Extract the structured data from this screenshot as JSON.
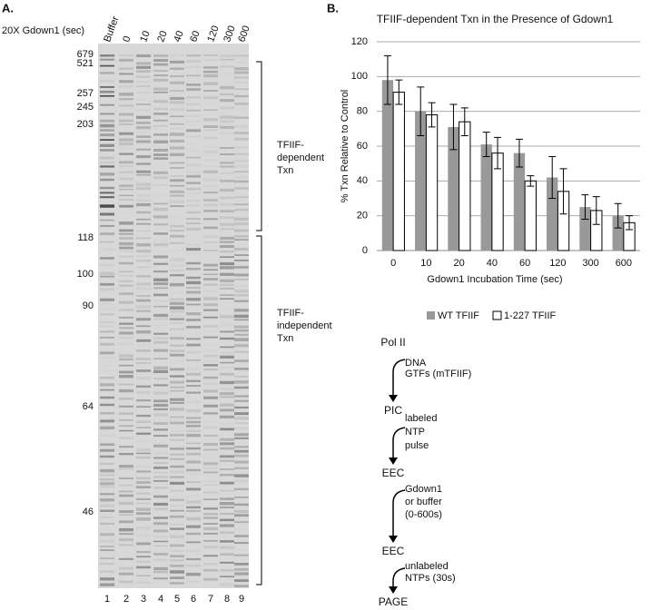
{
  "panel_a": {
    "label": "A.",
    "condition": "20X Gdown1 (sec)",
    "lanes": [
      "Buffer",
      "0",
      "10",
      "20",
      "40",
      "60",
      "120",
      "300",
      "600"
    ],
    "lane_numbers": [
      "1",
      "2",
      "3",
      "4",
      "5",
      "6",
      "7",
      "8",
      "9"
    ],
    "markers": [
      "679",
      "521",
      "257",
      "245",
      "203",
      "118",
      "100",
      "90",
      "64",
      "46"
    ],
    "regions": [
      {
        "lines": [
          "TFIIF-",
          "dependent",
          "Txn"
        ]
      },
      {
        "lines": [
          "TFIIF-",
          "independent",
          "Txn"
        ]
      }
    ]
  },
  "chart_data": {
    "type": "bar",
    "label": "B.",
    "title": "TFIIF-dependent Txn in the Presence of Gdown1",
    "ylabel": "% Txn Relative to Control",
    "xlabel": "Gdown1 Incubation Time (sec)",
    "categories": [
      "0",
      "10",
      "20",
      "40",
      "60",
      "120",
      "300",
      "600"
    ],
    "series": [
      {
        "name": "WT TFIIF",
        "color": "#999999",
        "values": [
          98,
          80,
          71,
          61,
          56,
          42,
          25,
          20
        ],
        "errors": [
          14,
          14,
          13,
          7,
          8,
          12,
          7,
          7
        ]
      },
      {
        "name": "1-227 TFIIF",
        "color": "#ffffff",
        "values": [
          91,
          78,
          74,
          56,
          40,
          34,
          23,
          16
        ],
        "errors": [
          7,
          7,
          8,
          9,
          3,
          13,
          8,
          4
        ]
      }
    ],
    "ylim": [
      0,
      120
    ],
    "yticks": [
      0,
      20,
      40,
      60,
      80,
      100,
      120
    ],
    "grid": true,
    "legend": "bottom"
  },
  "diagram": {
    "steps": [
      "Pol II",
      "PIC",
      "EEC",
      "EEC",
      "PAGE"
    ],
    "arrows": [
      {
        "lines": [
          "DNA",
          "GTFs (mTFIIF)"
        ]
      },
      {
        "lines": [
          "labeled",
          "NTP",
          "pulse"
        ]
      },
      {
        "lines": [
          "Gdown1",
          "or buffer",
          "(0-600s)"
        ]
      },
      {
        "lines": [
          "unlabeled",
          "NTPs (30s)"
        ]
      }
    ]
  }
}
